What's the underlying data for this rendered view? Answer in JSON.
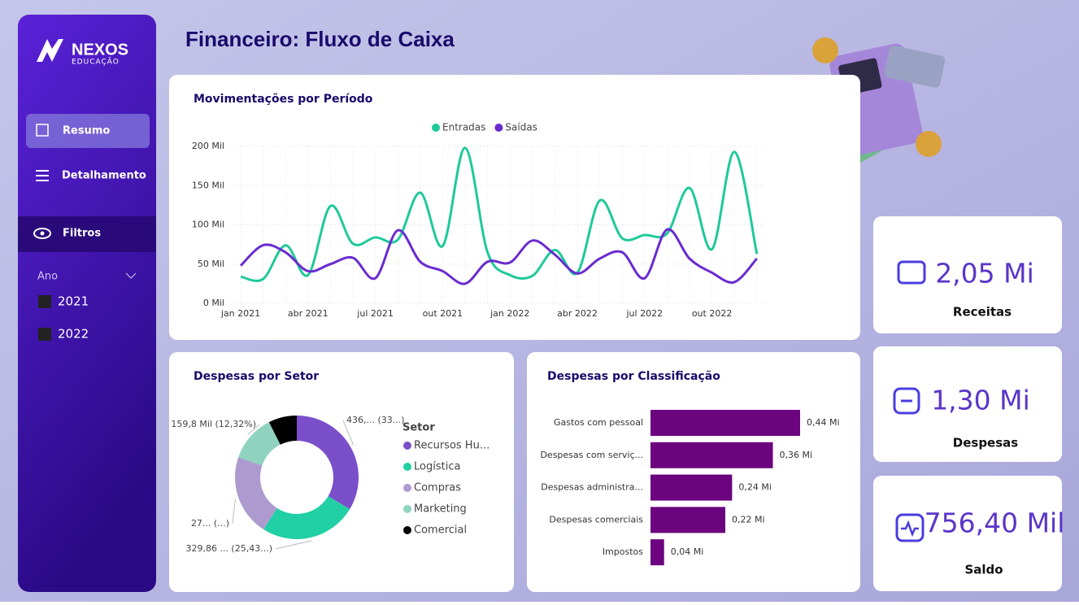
{
  "sidebar": {
    "logo": "NEXOS",
    "logo_sub": "EDUCAÇÃO",
    "nav": [
      "Resumo",
      "Detalhamento"
    ],
    "filters_title": "Filtros",
    "filter_label": "Ano",
    "filter_options": [
      "2021",
      "2022"
    ]
  },
  "header": {
    "title": "Financeiro: Fluxo de Caixa"
  },
  "kpis": [
    {
      "value": "2,05 Mi",
      "label": "Receitas"
    },
    {
      "value": "1,30 Mi",
      "label": "Despesas"
    },
    {
      "value": "756,40 Mil",
      "label": "Saldo"
    }
  ],
  "chart_data": [
    {
      "type": "line",
      "title": "Movimentações por Período",
      "categories": [
        "jan 2021",
        null,
        null,
        "abr 2021",
        null,
        null,
        "jul 2021",
        null,
        null,
        "out 2021",
        null,
        null,
        "jan 2022",
        null,
        null,
        "abr 2022",
        null,
        null,
        "jul 2022",
        null,
        null,
        "out 2022",
        null,
        null
      ],
      "series": [
        {
          "name": "Entradas",
          "color": "#1fc99a",
          "values": [
            34,
            31,
            74,
            36,
            124,
            76,
            84,
            81,
            141,
            73,
            198,
            65,
            36,
            35,
            68,
            39,
            131,
            83,
            87,
            89,
            147,
            69,
            193,
            63
          ]
        },
        {
          "name": "Saídas",
          "color": "#6a2bd0",
          "values": [
            48,
            74,
            65,
            41,
            50,
            58,
            32,
            93,
            53,
            41,
            25,
            53,
            52,
            80,
            62,
            38,
            57,
            65,
            32,
            94,
            57,
            39,
            27,
            57
          ]
        }
      ],
      "ylim": [
        0,
        200
      ],
      "yticks": [
        {
          "value": 0,
          "label": "0 Mil"
        },
        {
          "value": 50,
          "label": "50 Mil"
        },
        {
          "value": 100,
          "label": "100 Mil"
        },
        {
          "value": 150,
          "label": "150 Mil"
        },
        {
          "value": 200,
          "label": "200 Mil"
        }
      ],
      "grid": true,
      "legend": "top"
    },
    {
      "type": "donut",
      "title": "Despesas por Setor",
      "legend_title": "Setor",
      "categories": [
        "Recursos Hu...",
        "Logística",
        "Compras",
        "Marketing",
        "Comercial"
      ],
      "values": [
        436,
        329.86,
        275,
        159.8,
        96.3
      ],
      "value_labels": [
        "436,... (33...)",
        "329,86 ... (25,43...)",
        "27... (...)",
        "159,8 Mil (12,32%)",
        null
      ],
      "colors": [
        "#7b4fc9",
        "#21d0a4",
        "#ad9bd0",
        "#8fd3be",
        "#000000"
      ]
    },
    {
      "type": "hbar",
      "title": "Despesas por Classificação",
      "categories": [
        "Gastos com pessoal",
        "Despesas com serviç...",
        "Despesas administra...",
        "Despesas comerciais",
        "Impostos"
      ],
      "values": [
        0.44,
        0.36,
        0.24,
        0.22,
        0.04
      ],
      "value_labels": [
        "0,44 Mi",
        "0,36 Mi",
        "0,24 Mi",
        "0,22 Mi",
        "0,04 Mi"
      ],
      "color": "#6b047e",
      "xlim": [
        0,
        0.44
      ]
    }
  ]
}
